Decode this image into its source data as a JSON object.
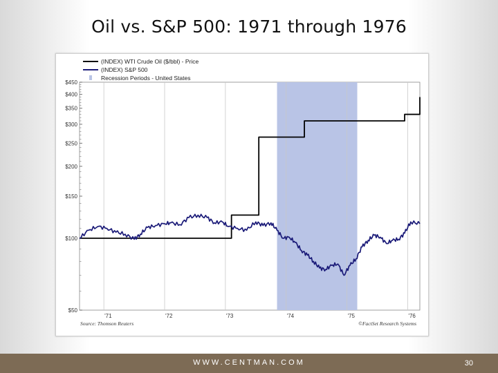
{
  "slide": {
    "title": "Oil vs. S&P 500:  1971 through 1976",
    "footer_url": "WWW.CENTMAN.COM",
    "page_number": "30"
  },
  "colors": {
    "oil": "#000000",
    "sp500": "#1a1a78",
    "recession": "#b9c4e6",
    "footer": "#7d6b55"
  },
  "chart_data": {
    "type": "line",
    "legend": [
      {
        "label": "(INDEX) WTI Crude Oil ($/bbl) - Price",
        "style": "oil"
      },
      {
        "label": "(INDEX) S&P 500",
        "style": "sp500"
      },
      {
        "label": "Recession Periods - United States",
        "style": "recession"
      }
    ],
    "yscale": "log",
    "ylim": [
      50,
      450
    ],
    "xlim": [
      1970.6,
      1976.2
    ],
    "yticks": [
      {
        "value": 450,
        "label": "$450"
      },
      {
        "value": 400,
        "label": "$400"
      },
      {
        "value": 350,
        "label": "$350"
      },
      {
        "value": 300,
        "label": "$300"
      },
      {
        "value": 250,
        "label": "$250"
      },
      {
        "value": 200,
        "label": "$200"
      },
      {
        "value": 150,
        "label": "$150"
      },
      {
        "value": 100,
        "label": "$100"
      },
      {
        "value": 50,
        "label": "$50"
      }
    ],
    "xticks": [
      {
        "value": 1971,
        "label": "'71"
      },
      {
        "value": 1972,
        "label": "'72"
      },
      {
        "value": 1973,
        "label": "'73"
      },
      {
        "value": 1974,
        "label": "'74"
      },
      {
        "value": 1975,
        "label": "'75"
      },
      {
        "value": 1976,
        "label": "'76"
      }
    ],
    "recession": [
      1973.85,
      1975.17
    ],
    "series": [
      {
        "name": "(INDEX) WTI Crude Oil ($/bbl) - Price",
        "key": "oil",
        "step": true,
        "x": [
          1970.6,
          1973.1,
          1973.55,
          1974.3,
          1975.95,
          1976.2
        ],
        "y": [
          100,
          125,
          265,
          310,
          330,
          390
        ]
      },
      {
        "name": "(INDEX) S&P 500",
        "key": "sp500",
        "x": [
          1970.6,
          1970.75,
          1970.9,
          1971.05,
          1971.2,
          1971.35,
          1971.5,
          1971.6,
          1971.72,
          1971.85,
          1972.0,
          1972.1,
          1972.25,
          1972.4,
          1972.55,
          1972.7,
          1972.82,
          1972.95,
          1973.05,
          1973.2,
          1973.35,
          1973.5,
          1973.62,
          1973.75,
          1973.85,
          1973.95,
          1974.05,
          1974.15,
          1974.25,
          1974.35,
          1974.45,
          1974.55,
          1974.65,
          1974.75,
          1974.85,
          1974.95,
          1975.05,
          1975.15,
          1975.25,
          1975.35,
          1975.45,
          1975.55,
          1975.65,
          1975.75,
          1975.85,
          1975.95,
          1976.05,
          1976.2
        ],
        "y": [
          100,
          108,
          112,
          110,
          106,
          104,
          99,
          104,
          111,
          113,
          115,
          116,
          114,
          122,
          125,
          122,
          116,
          117,
          112,
          110,
          108,
          117,
          113,
          116,
          108,
          100,
          101,
          96,
          89,
          85,
          80,
          75,
          74,
          77,
          78,
          70,
          77,
          82,
          92,
          98,
          103,
          101,
          95,
          98,
          99,
          105,
          117,
          115
        ]
      }
    ],
    "source_left": "Source: Thomson Reuters",
    "source_right": "©FactSet Research Systems"
  }
}
